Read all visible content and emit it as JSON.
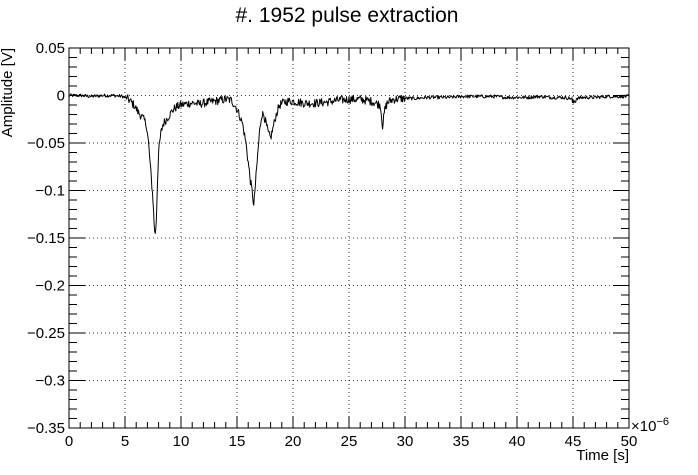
{
  "chart_data": {
    "type": "line",
    "title": "#. 1952 pulse extraction",
    "xlabel": "Time [s]",
    "ylabel": "Amplitude [V]",
    "x_multiplier": {
      "base": "×10",
      "exponent": "−6"
    },
    "xlim": [
      0,
      50
    ],
    "ylim": [
      -0.35,
      0.05
    ],
    "grid": true,
    "x_ticks": [
      0,
      5,
      10,
      15,
      20,
      25,
      30,
      35,
      40,
      45,
      50
    ],
    "x_tick_labels": [
      "0",
      "5",
      "10",
      "15",
      "20",
      "25",
      "30",
      "35",
      "40",
      "45",
      "50"
    ],
    "y_ticks": [
      0.05,
      0,
      -0.05,
      -0.1,
      -0.15,
      -0.2,
      -0.25,
      -0.3,
      -0.35
    ],
    "y_tick_labels": [
      "0.05",
      "0",
      "−0.05",
      "−0.1",
      "−0.15",
      "−0.2",
      "−0.25",
      "−0.3",
      "−0.35"
    ],
    "series": [
      {
        "color": "#000000",
        "x": [
          0,
          1,
          2,
          3,
          4,
          4.8,
          5.3,
          5.8,
          6.2,
          6.5,
          6.9,
          7.1,
          7.3,
          7.5,
          7.6,
          7.7,
          7.8,
          7.9,
          8.0,
          8.2,
          8.4,
          8.7,
          9.0,
          9.3,
          9.6,
          10.0,
          10.4,
          10.8,
          11.2,
          11.6,
          12.0,
          12.5,
          13.0,
          13.5,
          14.0,
          14.5,
          14.9,
          15.2,
          15.5,
          15.8,
          16.0,
          16.2,
          16.4,
          16.5,
          16.6,
          16.8,
          17.0,
          17.2,
          17.4,
          17.6,
          17.8,
          18.0,
          18.2,
          18.5,
          18.8,
          19.2,
          19.6,
          20.0,
          20.5,
          21.0,
          22.0,
          23.0,
          24.0,
          25.0,
          26.0,
          27.0,
          27.8,
          28.0,
          28.2,
          28.4,
          28.6,
          29.0,
          30.0,
          31.0,
          32.0,
          33.0,
          34.0,
          35.0,
          36.0,
          37.0,
          38.0,
          39.0,
          40.0,
          41.0,
          42.0,
          43.0,
          44.0,
          44.8,
          45.0,
          45.3,
          46.0,
          47.0,
          48.0,
          49.0,
          50.0
        ],
        "y": [
          0.0,
          0.0,
          -0.001,
          0.0,
          0.0,
          -0.001,
          -0.004,
          -0.01,
          -0.018,
          -0.022,
          -0.03,
          -0.05,
          -0.08,
          -0.11,
          -0.135,
          -0.147,
          -0.13,
          -0.09,
          -0.06,
          -0.04,
          -0.03,
          -0.025,
          -0.02,
          -0.015,
          -0.012,
          -0.01,
          -0.009,
          -0.008,
          -0.008,
          -0.009,
          -0.008,
          -0.007,
          -0.006,
          -0.005,
          -0.004,
          -0.005,
          -0.012,
          -0.02,
          -0.03,
          -0.05,
          -0.07,
          -0.09,
          -0.105,
          -0.117,
          -0.1,
          -0.07,
          -0.04,
          -0.02,
          -0.02,
          -0.03,
          -0.04,
          -0.045,
          -0.035,
          -0.02,
          -0.01,
          -0.007,
          -0.006,
          -0.006,
          -0.007,
          -0.008,
          -0.008,
          -0.007,
          -0.005,
          -0.004,
          -0.004,
          -0.006,
          -0.01,
          -0.032,
          -0.015,
          -0.008,
          -0.006,
          -0.004,
          -0.003,
          -0.003,
          -0.002,
          -0.002,
          -0.002,
          -0.001,
          -0.001,
          -0.001,
          -0.001,
          -0.002,
          -0.002,
          -0.002,
          -0.001,
          -0.002,
          -0.002,
          -0.003,
          -0.008,
          -0.003,
          -0.002,
          -0.002,
          -0.001,
          -0.001,
          -0.001
        ]
      }
    ]
  }
}
